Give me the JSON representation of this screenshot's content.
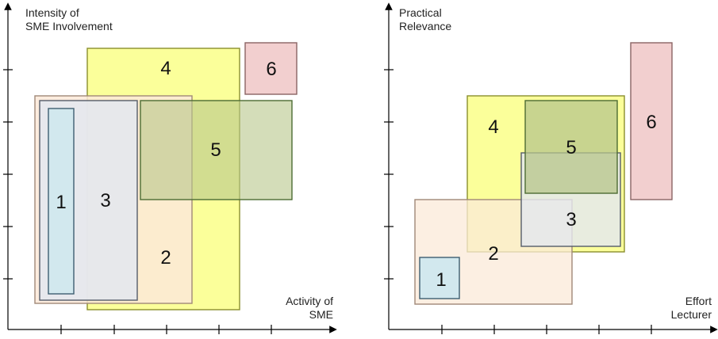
{
  "colors": {
    "yellow_fill": "#fbff9a",
    "yellow_stroke": "#8a8f2e",
    "peach_fill": "#fbe9d8",
    "peach_stroke": "#a08878",
    "green_fill": "#b7c68b",
    "green_stroke": "#4d6b33",
    "pink_fill": "#f2cfcf",
    "pink_stroke": "#8a6464",
    "gray_fill": "#e3e7f0",
    "gray_stroke": "#555c6a",
    "blue_fill": "#d2e8ee",
    "blue_stroke": "#3d5e70"
  },
  "left_chart": {
    "y_label": [
      "Intensity of",
      "SME Involvement"
    ],
    "x_label": [
      "Activity of",
      "SME"
    ],
    "boxes": [
      {
        "id": "4",
        "label": "4"
      },
      {
        "id": "2",
        "label": "2"
      },
      {
        "id": "3",
        "label": "3"
      },
      {
        "id": "1",
        "label": "1"
      },
      {
        "id": "5",
        "label": "5"
      },
      {
        "id": "6",
        "label": "6"
      }
    ]
  },
  "right_chart": {
    "y_label": [
      "Practical",
      "Relevance"
    ],
    "x_label": [
      "Effort",
      "Lecturer"
    ],
    "boxes": [
      {
        "id": "2",
        "label": "2"
      },
      {
        "id": "4",
        "label": "4"
      },
      {
        "id": "3",
        "label": "3"
      },
      {
        "id": "5",
        "label": "5"
      },
      {
        "id": "1",
        "label": "1"
      },
      {
        "id": "6",
        "label": "6"
      }
    ]
  }
}
